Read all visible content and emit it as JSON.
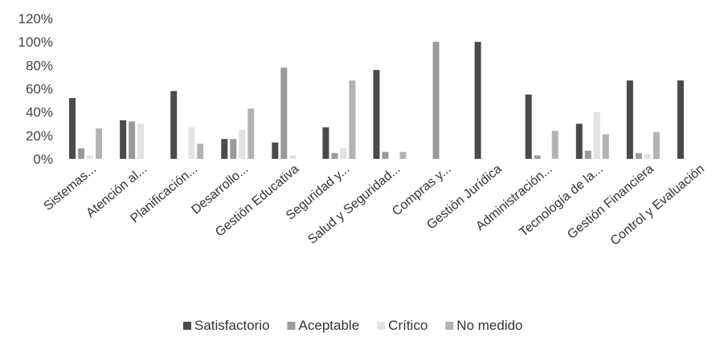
{
  "chart_data": {
    "type": "bar",
    "categories": [
      "Sistemas...",
      "Atención al...",
      "Planificación...",
      "Desarrollo...",
      "Gestión Educativa",
      "Seguridad y...",
      "Salud y Seguridad...",
      "Compras y...",
      "Gestión Jurídica",
      "Administración...",
      "Tecnología de la...",
      "Gestión Financiera",
      "Control y Evaluación"
    ],
    "series": [
      {
        "name": "Satisfactorio",
        "color": "#4a4a4a",
        "values": [
          52,
          33,
          58,
          17,
          14,
          27,
          76,
          0,
          100,
          55,
          30,
          67,
          67
        ]
      },
      {
        "name": "Aceptable",
        "color": "#9a9a9a",
        "values": [
          9,
          32,
          0,
          17,
          78,
          5,
          6,
          100,
          0,
          3,
          7,
          5,
          0
        ]
      },
      {
        "name": "Crítico",
        "color": "#e2e2e2",
        "values": [
          3,
          30,
          27,
          25,
          3,
          9,
          0,
          0,
          0,
          0,
          40,
          4,
          0
        ]
      },
      {
        "name": "No medido",
        "color": "#b3b3b3",
        "values": [
          26,
          0,
          13,
          43,
          0,
          67,
          6,
          0,
          0,
          24,
          21,
          23,
          0
        ]
      }
    ],
    "y_ticks": [
      "0%",
      "20%",
      "40%",
      "60%",
      "80%",
      "100%",
      "120%"
    ],
    "ylim": [
      0,
      120
    ],
    "unit": "%",
    "grid": false,
    "legend_position": "bottom"
  }
}
